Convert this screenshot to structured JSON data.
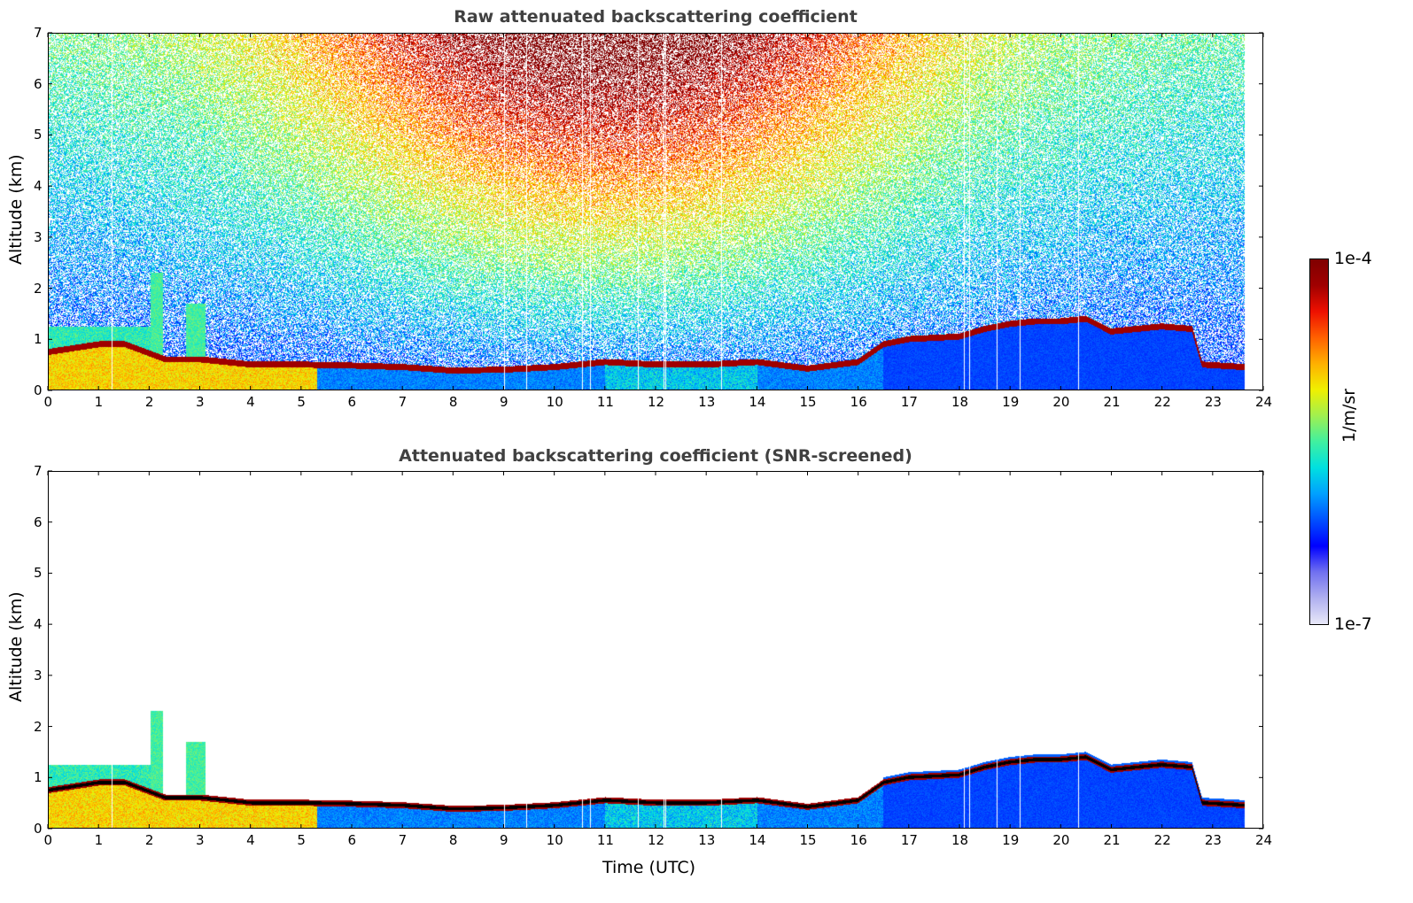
{
  "chart_data": [
    {
      "type": "heatmap",
      "title": "Raw attenuated backscattering coefficient",
      "xlabel": "",
      "ylabel": "Altitude (km)",
      "xlim": [
        0,
        24
      ],
      "ylim": [
        0,
        7
      ],
      "xticks": [
        "0",
        "1",
        "2",
        "3",
        "4",
        "5",
        "6",
        "7",
        "8",
        "9",
        "10",
        "11",
        "12",
        "13",
        "14",
        "15",
        "16",
        "17",
        "18",
        "19",
        "20",
        "21",
        "22",
        "23",
        "24"
      ],
      "yticks": [
        "0",
        "1",
        "2",
        "3",
        "4",
        "5",
        "6",
        "7"
      ],
      "data_end_hour": 23.65,
      "screened": false,
      "cloud_layer_km": [
        [
          0,
          0.75
        ],
        [
          1,
          0.9
        ],
        [
          1.5,
          0.9
        ],
        [
          2.3,
          0.6
        ],
        [
          3,
          0.6
        ],
        [
          4,
          0.5
        ],
        [
          5,
          0.5
        ],
        [
          6,
          0.48
        ],
        [
          7,
          0.45
        ],
        [
          8,
          0.38
        ],
        [
          9,
          0.4
        ],
        [
          10,
          0.45
        ],
        [
          11,
          0.55
        ],
        [
          12,
          0.5
        ],
        [
          13,
          0.5
        ],
        [
          14,
          0.55
        ],
        [
          15,
          0.42
        ],
        [
          16,
          0.55
        ],
        [
          16.5,
          0.9
        ],
        [
          17,
          1.0
        ],
        [
          18,
          1.05
        ],
        [
          18.5,
          1.2
        ],
        [
          19,
          1.3
        ],
        [
          19.5,
          1.35
        ],
        [
          20,
          1.35
        ],
        [
          20.5,
          1.4
        ],
        [
          21,
          1.15
        ],
        [
          22,
          1.25
        ],
        [
          22.6,
          1.2
        ],
        [
          22.8,
          0.5
        ],
        [
          23.65,
          0.45
        ]
      ],
      "plumes": [
        {
          "hour_start": 2.0,
          "hour_end": 2.25,
          "top_km": 2.3
        },
        {
          "hour_start": 2.7,
          "hour_end": 3.1,
          "top_km": 1.7
        }
      ]
    },
    {
      "type": "heatmap",
      "title": "Attenuated backscattering coefficient (SNR-screened)",
      "xlabel": "Time (UTC)",
      "ylabel": "Altitude (km)",
      "xlim": [
        0,
        24
      ],
      "ylim": [
        0,
        7
      ],
      "xticks": [
        "0",
        "1",
        "2",
        "3",
        "4",
        "5",
        "6",
        "7",
        "8",
        "9",
        "10",
        "11",
        "12",
        "13",
        "14",
        "15",
        "16",
        "17",
        "18",
        "19",
        "20",
        "21",
        "22",
        "23",
        "24"
      ],
      "yticks": [
        "0",
        "1",
        "2",
        "3",
        "4",
        "5",
        "6",
        "7"
      ],
      "data_end_hour": 23.65,
      "screened": true
    }
  ],
  "colorbar": {
    "label": "1/m/sr",
    "max_label": "1e-4",
    "min_label": "1e-7",
    "scale": "log",
    "range": [
      1e-07,
      0.0001
    ],
    "colormap": [
      "#e8e8f8",
      "#b0b0f0",
      "#7070f0",
      "#0000ff",
      "#0050ff",
      "#00a0ff",
      "#00e0e0",
      "#40f0a0",
      "#a0f050",
      "#f0f000",
      "#ffb000",
      "#ff6000",
      "#ee1000",
      "#a00000",
      "#800000"
    ]
  }
}
